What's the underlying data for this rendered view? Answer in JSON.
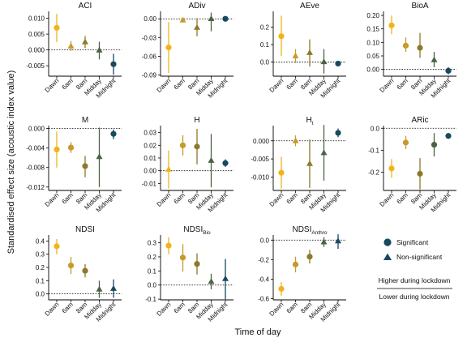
{
  "figure": {
    "xlabel": "Time of day",
    "ylabel": "Standardised effect size (acoustic index value)"
  },
  "legend": {
    "significant": "Significant",
    "nonsignificant": "Non-significant",
    "higher": "Higher during lockdown",
    "lower": "Lower during lockdown"
  },
  "colors": {
    "Dawn": "#f2b31a",
    "6am": "#c69a2b",
    "8am": "#8c7a2a",
    "Midday": "#4a6342",
    "Midnight": "#174a60",
    "legend_marker": "#174a60",
    "axis": "#000000"
  },
  "chart_data": [
    {
      "type": "scatter",
      "title": "ACI",
      "subtitle": "",
      "categories": [
        "Dawn",
        "6am",
        "8am",
        "Midday",
        "Midnight"
      ],
      "ylim": [
        -0.0083,
        0.0122
      ],
      "yticks": [
        -0.005,
        0.0,
        0.005,
        0.01
      ],
      "ytick_labels": [
        "-0.005",
        "0.000",
        "0.005",
        "0.010"
      ],
      "values": [
        0.007,
        0.0012,
        0.0025,
        -0.0001,
        -0.0045
      ],
      "lower": [
        0.0025,
        -0.0003,
        0.0006,
        -0.003,
        -0.0078
      ],
      "upper": [
        0.0114,
        0.0028,
        0.0044,
        0.0026,
        -0.0012
      ],
      "significant": [
        true,
        false,
        false,
        false,
        true
      ]
    },
    {
      "type": "scatter",
      "title": "ADiv",
      "subtitle": "",
      "categories": [
        "Dawn",
        "6am",
        "8am",
        "Midday",
        "Midnight"
      ],
      "ylim": [
        -0.092,
        0.012
      ],
      "yticks": [
        -0.09,
        -0.06,
        -0.03,
        0.0
      ],
      "ytick_labels": [
        "-0.09",
        "-0.06",
        "-0.03",
        "0.00"
      ],
      "values": [
        -0.046,
        -0.002,
        -0.014,
        0.0,
        0.0
      ],
      "lower": [
        -0.087,
        -0.006,
        -0.028,
        -0.02,
        -0.002
      ],
      "upper": [
        -0.005,
        0.002,
        0.001,
        0.01,
        0.002
      ],
      "significant": [
        true,
        false,
        false,
        false,
        true
      ]
    },
    {
      "type": "scatter",
      "title": "AEve",
      "subtitle": "",
      "categories": [
        "Dawn",
        "6am",
        "8am",
        "Midday",
        "Midnight"
      ],
      "ylim": [
        -0.08,
        0.29
      ],
      "yticks": [
        0.0,
        0.1,
        0.2
      ],
      "ytick_labels": [
        "0.0",
        "0.1",
        "0.2"
      ],
      "values": [
        0.148,
        0.035,
        0.054,
        0.002,
        -0.008
      ],
      "lower": [
        0.035,
        -0.005,
        -0.025,
        -0.065,
        -0.018
      ],
      "upper": [
        0.265,
        0.075,
        0.13,
        0.075,
        0.002
      ],
      "significant": [
        true,
        false,
        false,
        false,
        true
      ]
    },
    {
      "type": "scatter",
      "title": "BioA",
      "subtitle": "",
      "categories": [
        "Dawn",
        "6am",
        "8am",
        "Midday",
        "Midnight"
      ],
      "ylim": [
        -0.025,
        0.215
      ],
      "yticks": [
        0.0,
        0.05,
        0.1,
        0.15,
        0.2
      ],
      "ytick_labels": [
        "0.00",
        "0.05",
        "0.10",
        "0.15",
        "0.20"
      ],
      "values": [
        0.163,
        0.088,
        0.08,
        0.035,
        -0.005
      ],
      "lower": [
        0.13,
        0.065,
        0.043,
        0.008,
        -0.018
      ],
      "upper": [
        0.2,
        0.118,
        0.135,
        0.065,
        0.008
      ],
      "significant": [
        true,
        true,
        true,
        false,
        true
      ]
    },
    {
      "type": "scatter",
      "title": "M",
      "subtitle": "",
      "categories": [
        "Dawn",
        "6am",
        "8am",
        "Midday",
        "Midnight"
      ],
      "ylim": [
        -0.0127,
        0.0006
      ],
      "yticks": [
        -0.012,
        -0.008,
        -0.004,
        0.0
      ],
      "ytick_labels": [
        "-0.012",
        "-0.008",
        "-0.004",
        "0.000"
      ],
      "values": [
        -0.0043,
        -0.0039,
        -0.0077,
        -0.0058,
        -0.0011
      ],
      "lower": [
        -0.008,
        -0.005,
        -0.01,
        -0.012,
        -0.0022
      ],
      "upper": [
        -0.0006,
        -0.0028,
        -0.0056,
        0.0002,
        -0.0002
      ],
      "significant": [
        true,
        true,
        true,
        false,
        true
      ]
    },
    {
      "type": "scatter",
      "title": "H",
      "subtitle": "",
      "categories": [
        "Dawn",
        "6am",
        "8am",
        "Midday",
        "Midnight"
      ],
      "ylim": [
        -0.0155,
        0.0355
      ],
      "yticks": [
        -0.01,
        0.0,
        0.01,
        0.02,
        0.03
      ],
      "ytick_labels": [
        "-0.01",
        "0.00",
        "0.01",
        "0.02",
        "0.03"
      ],
      "values": [
        0.001,
        0.02,
        0.019,
        0.008,
        0.006
      ],
      "lower": [
        -0.014,
        0.012,
        0.005,
        -0.013,
        0.003
      ],
      "upper": [
        0.016,
        0.028,
        0.033,
        0.029,
        0.009
      ],
      "significant": [
        false,
        true,
        true,
        false,
        true
      ]
    },
    {
      "type": "scatter",
      "title": "H",
      "subtitle": "t",
      "categories": [
        "Dawn",
        "6am",
        "8am",
        "Midday",
        "Midnight"
      ],
      "ylim": [
        -0.0137,
        0.0042
      ],
      "yticks": [
        -0.01,
        -0.005,
        0.0
      ],
      "ytick_labels": [
        "-0.010",
        "-0.005",
        "0.000"
      ],
      "values": [
        -0.0088,
        0.0,
        -0.0063,
        -0.0033,
        0.0022
      ],
      "lower": [
        -0.0132,
        -0.0015,
        -0.013,
        -0.011,
        0.001
      ],
      "upper": [
        -0.0044,
        0.0015,
        0.0004,
        0.0044,
        0.0034
      ],
      "significant": [
        true,
        false,
        false,
        false,
        true
      ]
    },
    {
      "type": "scatter",
      "title": "ARic",
      "subtitle": "",
      "categories": [
        "Dawn",
        "6am",
        "8am",
        "Midday",
        "Midnight"
      ],
      "ylim": [
        -0.283,
        0.012
      ],
      "yticks": [
        -0.2,
        -0.1,
        0.0
      ],
      "ytick_labels": [
        "-0.2",
        "-0.1",
        "0.0"
      ],
      "values": [
        -0.183,
        -0.065,
        -0.207,
        -0.075,
        -0.035
      ],
      "lower": [
        -0.225,
        -0.095,
        -0.278,
        -0.128,
        -0.048
      ],
      "upper": [
        -0.14,
        -0.035,
        -0.136,
        -0.022,
        -0.022
      ],
      "significant": [
        true,
        true,
        true,
        true,
        true
      ]
    },
    {
      "type": "scatter",
      "title": "NDSI",
      "subtitle": "",
      "categories": [
        "Dawn",
        "6am",
        "8am",
        "Midday",
        "Midnight"
      ],
      "ylim": [
        -0.045,
        0.445
      ],
      "yticks": [
        0.0,
        0.1,
        0.2,
        0.3,
        0.4
      ],
      "ytick_labels": [
        "0.0",
        "0.1",
        "0.2",
        "0.3",
        "0.4"
      ],
      "values": [
        0.36,
        0.215,
        0.175,
        0.035,
        0.04
      ],
      "lower": [
        0.3,
        0.15,
        0.125,
        -0.03,
        -0.03
      ],
      "upper": [
        0.415,
        0.28,
        0.225,
        0.1,
        0.11
      ],
      "significant": [
        true,
        true,
        true,
        false,
        false
      ]
    },
    {
      "type": "scatter",
      "title": "NDSI",
      "subtitle": "Bio",
      "categories": [
        "Dawn",
        "6am",
        "8am",
        "Midday",
        "Midnight"
      ],
      "ylim": [
        -0.105,
        0.355
      ],
      "yticks": [
        -0.1,
        0.0,
        0.1,
        0.2,
        0.3
      ],
      "ytick_labels": [
        "-0.1",
        "0.0",
        "0.1",
        "0.2",
        "0.3"
      ],
      "values": [
        0.28,
        0.195,
        0.15,
        0.025,
        0.045
      ],
      "lower": [
        0.22,
        0.095,
        0.075,
        -0.03,
        -0.1
      ],
      "upper": [
        0.34,
        0.29,
        0.225,
        0.08,
        0.185
      ],
      "significant": [
        true,
        true,
        true,
        false,
        false
      ]
    },
    {
      "type": "scatter",
      "title": "NDSI",
      "subtitle": "Anthro",
      "categories": [
        "Dawn",
        "6am",
        "8am",
        "Midday",
        "Midnight"
      ],
      "ylim": [
        -0.612,
        0.052
      ],
      "yticks": [
        -0.6,
        -0.4,
        -0.2,
        0.0
      ],
      "ytick_labels": [
        "-0.6",
        "-0.4",
        "-0.2",
        "0.0"
      ],
      "values": [
        -0.5,
        -0.25,
        -0.17,
        -0.02,
        -0.01
      ],
      "lower": [
        -0.57,
        -0.33,
        -0.24,
        -0.07,
        -0.09
      ],
      "upper": [
        -0.43,
        -0.17,
        -0.1,
        0.03,
        0.06
      ],
      "significant": [
        true,
        true,
        true,
        false,
        false
      ]
    }
  ]
}
